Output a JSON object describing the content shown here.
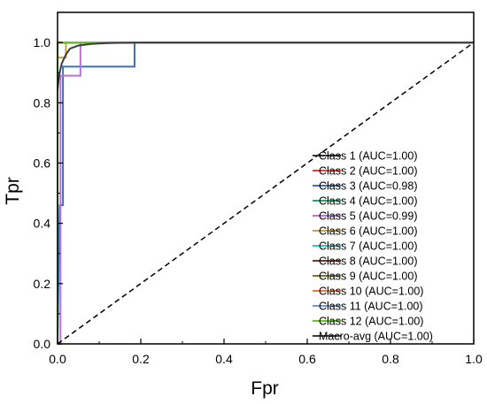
{
  "chart_data": {
    "type": "line",
    "title": "",
    "xlabel": "Fpr",
    "ylabel": "Tpr",
    "xlim": [
      0.0,
      1.0
    ],
    "ylim": [
      0.0,
      1.1
    ],
    "xticks": [
      "0.0",
      "0.2",
      "0.4",
      "0.6",
      "0.8",
      "1.0"
    ],
    "yticks": [
      "0.0",
      "0.2",
      "0.4",
      "0.6",
      "0.8",
      "1.0"
    ],
    "grid": false,
    "legend_position": "bottom-right",
    "reference_line": {
      "style": "dashed",
      "color": "#000000",
      "x": [
        0.0,
        1.0
      ],
      "y": [
        0.0,
        1.0
      ]
    },
    "series": [
      {
        "name": "Class 1 (AUC=1.00)",
        "color": "#333333",
        "x": [
          0,
          0,
          1
        ],
        "y": [
          0,
          1,
          1
        ]
      },
      {
        "name": "Class 2 (AUC=1.00)",
        "color": "#e8413a",
        "x": [
          0,
          0,
          1
        ],
        "y": [
          0,
          1,
          1
        ]
      },
      {
        "name": "Class 3 (AUC=0.98)",
        "color": "#3a6fc4",
        "x": [
          0,
          0.005,
          0.013,
          0.013,
          0.015,
          0.015,
          0.185,
          0.185,
          1
        ],
        "y": [
          0,
          0.46,
          0.46,
          0.92,
          0.92,
          0.92,
          0.92,
          1,
          1
        ]
      },
      {
        "name": "Class 4 (AUC=1.00)",
        "color": "#2aa36b",
        "x": [
          0,
          0,
          1
        ],
        "y": [
          0,
          1,
          1
        ]
      },
      {
        "name": "Class 5 (AUC=0.99)",
        "color": "#b774d6",
        "x": [
          0,
          0.007,
          0.007,
          0.022,
          0.022,
          0.055,
          0.055,
          1
        ],
        "y": [
          0,
          0,
          0.89,
          0.89,
          0.89,
          0.89,
          1,
          1
        ]
      },
      {
        "name": "Class 6 (AUC=1.00)",
        "color": "#c8a23c",
        "x": [
          0,
          0,
          0.02,
          0.02,
          1
        ],
        "y": [
          0,
          0.95,
          0.95,
          1,
          1
        ]
      },
      {
        "name": "Class 7 (AUC=1.00)",
        "color": "#2ec4c9",
        "x": [
          0,
          0,
          1
        ],
        "y": [
          0,
          1,
          1
        ]
      },
      {
        "name": "Class 8 (AUC=1.00)",
        "color": "#6b3a2a",
        "x": [
          0,
          0,
          1
        ],
        "y": [
          0,
          1,
          1
        ]
      },
      {
        "name": "Class 9 (AUC=1.00)",
        "color": "#7a7a1e",
        "x": [
          0,
          0,
          1
        ],
        "y": [
          0,
          1,
          1
        ]
      },
      {
        "name": "Class 10 (AUC=1.00)",
        "color": "#f07a2a",
        "x": [
          0,
          0,
          1
        ],
        "y": [
          0,
          1,
          1
        ]
      },
      {
        "name": "Class 11 (AUC=1.00)",
        "color": "#6a9be0",
        "x": [
          0,
          0,
          1
        ],
        "y": [
          0,
          1,
          1
        ]
      },
      {
        "name": "Class 12 (AUC=1.00)",
        "color": "#6cc02a",
        "x": [
          0,
          0,
          1
        ],
        "y": [
          0,
          1,
          1
        ]
      },
      {
        "name": "Macro-avg (AUC=1.00)",
        "color": "#3d3d3d",
        "x": [
          0,
          0.002,
          0.005,
          0.01,
          0.02,
          0.03,
          0.05,
          0.08,
          0.12,
          0.2,
          1
        ],
        "y": [
          0.84,
          0.87,
          0.9,
          0.93,
          0.96,
          0.98,
          0.99,
          0.995,
          0.998,
          1,
          1
        ]
      }
    ]
  }
}
